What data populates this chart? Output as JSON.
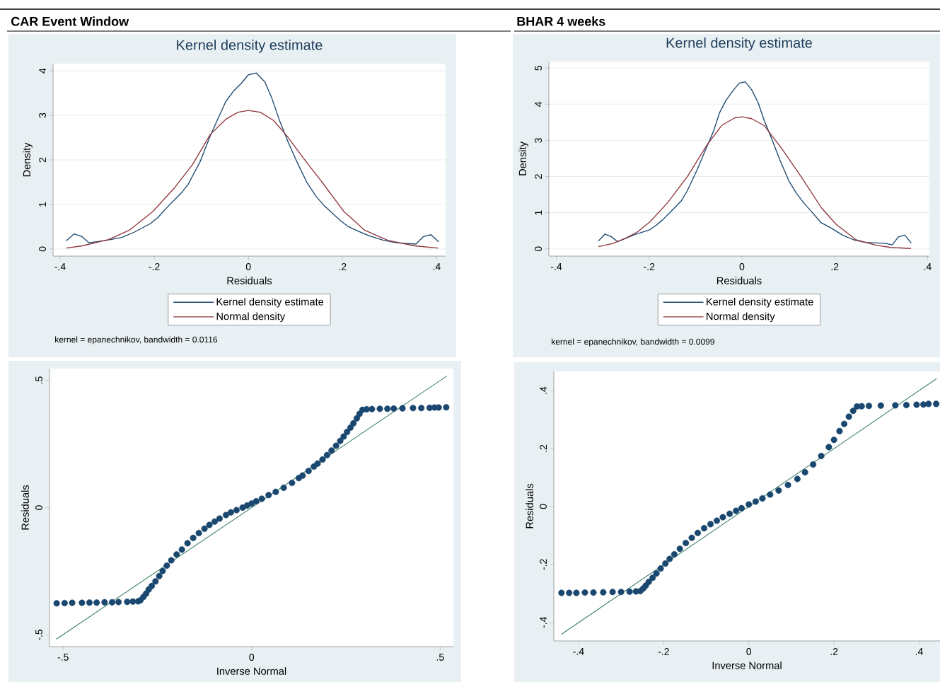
{
  "chart_data": [
    {
      "type": "line",
      "title": "Kernel density estimate",
      "xlabel": "Residuals",
      "ylabel": "Density",
      "annotations": [
        "CAR Event Window",
        "kernel = epanechnikov, bandwidth = 0.0116"
      ],
      "xlim": [
        -0.415,
        0.419
      ],
      "ylim": [
        -0.16,
        4.16
      ],
      "xticks": [
        {
          "value": -0.4,
          "label": "-.4"
        },
        {
          "value": -0.2,
          "label": "-.2"
        },
        0,
        {
          "value": 0.2,
          "label": ".2"
        },
        {
          "value": 0.4,
          "label": ".4"
        }
      ],
      "yticks": [
        0,
        1,
        2,
        3,
        4
      ],
      "grid": "y",
      "legend": "bottom",
      "series": [
        {
          "name": "Kernel density estimate",
          "color": "#1a476f",
          "x": [
            -0.387,
            -0.37,
            -0.354,
            -0.339,
            -0.303,
            -0.269,
            -0.242,
            -0.208,
            -0.192,
            -0.175,
            -0.144,
            -0.128,
            -0.103,
            -0.081,
            -0.064,
            -0.048,
            -0.032,
            -0.015,
            0,
            0.017,
            0.035,
            0.05,
            0.067,
            0.086,
            0.106,
            0.125,
            0.144,
            0.161,
            0.178,
            0.194,
            0.211,
            0.231,
            0.258,
            0.286,
            0.314,
            0.356,
            0.372,
            0.388,
            0.404
          ],
          "values": [
            0.18,
            0.34,
            0.28,
            0.14,
            0.19,
            0.26,
            0.38,
            0.57,
            0.71,
            0.91,
            1.24,
            1.45,
            1.95,
            2.54,
            2.94,
            3.31,
            3.54,
            3.72,
            3.91,
            3.95,
            3.75,
            3.38,
            2.86,
            2.36,
            1.89,
            1.48,
            1.18,
            0.97,
            0.81,
            0.65,
            0.51,
            0.41,
            0.29,
            0.2,
            0.14,
            0.11,
            0.28,
            0.32,
            0.16
          ]
        },
        {
          "name": "Normal density",
          "color": "#90353b",
          "x": [
            -0.387,
            -0.353,
            -0.297,
            -0.253,
            -0.203,
            -0.158,
            -0.119,
            -0.081,
            -0.047,
            -0.022,
            0,
            0.025,
            0.053,
            0.081,
            0.119,
            0.158,
            0.203,
            0.247,
            0.297,
            0.353,
            0.403
          ],
          "values": [
            0.02,
            0.07,
            0.21,
            0.42,
            0.84,
            1.36,
            1.89,
            2.57,
            2.92,
            3.07,
            3.11,
            3.07,
            2.89,
            2.55,
            2.01,
            1.48,
            0.84,
            0.42,
            0.19,
            0.07,
            0.02
          ]
        }
      ]
    },
    {
      "type": "line",
      "title": "Kernel density estimate",
      "xlabel": "Residuals",
      "ylabel": "Density",
      "annotations": [
        "BHAR 4 weeks",
        "kernel = epanechnikov, bandwidth = 0.0099"
      ],
      "xlim": [
        -0.416,
        0.404
      ],
      "ylim": [
        -0.2,
        5.18
      ],
      "xticks": [
        {
          "value": -0.4,
          "label": "-.4"
        },
        {
          "value": -0.2,
          "label": "-.2"
        },
        0,
        {
          "value": 0.2,
          "label": ".2"
        },
        {
          "value": 0.4,
          "label": ".4"
        }
      ],
      "yticks": [
        0,
        1,
        2,
        3,
        4,
        5
      ],
      "grid": "y",
      "legend": "bottom",
      "series": [
        {
          "name": "Kernel density estimate",
          "color": "#1a476f",
          "x": [
            -0.309,
            -0.295,
            -0.282,
            -0.268,
            -0.23,
            -0.2,
            -0.187,
            -0.171,
            -0.15,
            -0.131,
            -0.118,
            -0.096,
            -0.075,
            -0.061,
            -0.048,
            -0.034,
            -0.02,
            -0.006,
            0.007,
            0.021,
            0.035,
            0.048,
            0.064,
            0.083,
            0.102,
            0.118,
            0.134,
            0.15,
            0.171,
            0.193,
            0.217,
            0.241,
            0.267,
            0.31,
            0.324,
            0.337,
            0.351,
            0.365
          ],
          "values": [
            0.22,
            0.41,
            0.34,
            0.2,
            0.4,
            0.52,
            0.63,
            0.8,
            1.07,
            1.32,
            1.6,
            2.2,
            2.84,
            3.26,
            3.77,
            4.11,
            4.36,
            4.58,
            4.62,
            4.4,
            4.04,
            3.55,
            3.05,
            2.42,
            1.86,
            1.53,
            1.26,
            1.03,
            0.72,
            0.57,
            0.38,
            0.25,
            0.18,
            0.15,
            0.11,
            0.33,
            0.38,
            0.16
          ]
        },
        {
          "name": "Normal density",
          "color": "#90353b",
          "x": [
            -0.309,
            -0.278,
            -0.251,
            -0.225,
            -0.198,
            -0.16,
            -0.118,
            -0.075,
            -0.043,
            -0.016,
            0,
            0.021,
            0.048,
            0.086,
            0.128,
            0.171,
            0.203,
            0.246,
            0.289,
            0.321,
            0.364
          ],
          "values": [
            0.06,
            0.15,
            0.29,
            0.47,
            0.75,
            1.28,
            1.99,
            2.88,
            3.42,
            3.62,
            3.65,
            3.6,
            3.41,
            2.77,
            1.99,
            1.14,
            0.68,
            0.25,
            0.1,
            0.04,
            0.01
          ]
        }
      ]
    },
    {
      "type": "scatter",
      "xlabel": "Inverse Normal",
      "ylabel": "Residuals",
      "xlim": [
        -0.536,
        0.535
      ],
      "ylim": [
        -0.546,
        0.546
      ],
      "xticks": [
        {
          "value": -0.5,
          "label": "-.5"
        },
        0,
        {
          "value": 0.5,
          "label": ".5"
        }
      ],
      "yticks": [
        {
          "value": -0.5,
          "label": "-.5"
        },
        0,
        {
          "value": 0.5,
          "label": ".5"
        }
      ],
      "series": [
        {
          "type": "scatter",
          "color": "#1a476f",
          "x": [
            -0.517,
            -0.496,
            -0.476,
            -0.45,
            -0.43,
            -0.411,
            -0.39,
            -0.37,
            -0.353,
            -0.33,
            -0.315,
            -0.301,
            -0.295,
            -0.287,
            -0.28,
            -0.273,
            -0.265,
            -0.255,
            -0.245,
            -0.236,
            -0.225,
            -0.213,
            -0.199,
            -0.185,
            -0.17,
            -0.155,
            -0.14,
            -0.125,
            -0.112,
            -0.098,
            -0.085,
            -0.068,
            -0.055,
            -0.04,
            -0.024,
            -0.012,
            0,
            0.012,
            0.027,
            0.045,
            0.064,
            0.085,
            0.107,
            0.125,
            0.135,
            0.151,
            0.165,
            0.175,
            0.188,
            0.2,
            0.212,
            0.224,
            0.235,
            0.244,
            0.253,
            0.262,
            0.27,
            0.279,
            0.286,
            0.294,
            0.305,
            0.319,
            0.34,
            0.36,
            0.377,
            0.4,
            0.428,
            0.45,
            0.472,
            0.485,
            0.496,
            0.516
          ],
          "values": [
            -0.376,
            -0.375,
            -0.374,
            -0.374,
            -0.373,
            -0.373,
            -0.372,
            -0.372,
            -0.371,
            -0.37,
            -0.369,
            -0.368,
            -0.364,
            -0.351,
            -0.338,
            -0.322,
            -0.308,
            -0.29,
            -0.269,
            -0.249,
            -0.228,
            -0.207,
            -0.184,
            -0.165,
            -0.14,
            -0.119,
            -0.1,
            -0.083,
            -0.068,
            -0.055,
            -0.043,
            -0.029,
            -0.019,
            -0.01,
            0,
            0.008,
            0.016,
            0.025,
            0.035,
            0.049,
            0.062,
            0.078,
            0.097,
            0.116,
            0.126,
            0.144,
            0.161,
            0.173,
            0.189,
            0.206,
            0.224,
            0.243,
            0.262,
            0.279,
            0.297,
            0.314,
            0.331,
            0.351,
            0.368,
            0.384,
            0.386,
            0.387,
            0.388,
            0.388,
            0.389,
            0.39,
            0.391,
            0.391,
            0.392,
            0.393,
            0.393,
            0.394
          ]
        },
        {
          "type": "line",
          "color": "#3b8068",
          "x": [
            -0.518,
            0.518
          ],
          "values": [
            -0.517,
            0.517
          ]
        }
      ]
    },
    {
      "type": "scatter",
      "xlabel": "Inverse Normal",
      "ylabel": "Residuals",
      "xlim": [
        -0.458,
        0.449
      ],
      "ylim": [
        -0.464,
        0.466
      ],
      "xticks": [
        {
          "value": -0.4,
          "label": "-.4"
        },
        {
          "value": -0.2,
          "label": "-.2"
        },
        0,
        {
          "value": 0.2,
          "label": ".2"
        },
        {
          "value": 0.4,
          "label": ".4"
        }
      ],
      "yticks": [
        {
          "value": -0.4,
          "label": "-.4"
        },
        {
          "value": -0.2,
          "label": "-.2"
        },
        0,
        {
          "value": 0.2,
          "label": ".2"
        },
        {
          "value": 0.4,
          "label": ".4"
        }
      ],
      "series": [
        {
          "type": "scatter",
          "color": "#1a476f",
          "x": [
            -0.44,
            -0.422,
            -0.405,
            -0.385,
            -0.365,
            -0.342,
            -0.32,
            -0.3,
            -0.28,
            -0.265,
            -0.255,
            -0.248,
            -0.242,
            -0.235,
            -0.226,
            -0.217,
            -0.207,
            -0.196,
            -0.186,
            -0.175,
            -0.162,
            -0.148,
            -0.134,
            -0.12,
            -0.105,
            -0.09,
            -0.075,
            -0.061,
            -0.045,
            -0.03,
            -0.017,
            0,
            0.016,
            0.032,
            0.05,
            0.07,
            0.092,
            0.114,
            0.132,
            0.151,
            0.17,
            0.188,
            0.2,
            0.213,
            0.224,
            0.235,
            0.245,
            0.254,
            0.265,
            0.282,
            0.31,
            0.344,
            0.37,
            0.394,
            0.41,
            0.422,
            0.44
          ],
          "values": [
            -0.298,
            -0.298,
            -0.298,
            -0.297,
            -0.297,
            -0.296,
            -0.295,
            -0.295,
            -0.294,
            -0.293,
            -0.292,
            -0.283,
            -0.273,
            -0.26,
            -0.246,
            -0.231,
            -0.214,
            -0.197,
            -0.181,
            -0.165,
            -0.146,
            -0.126,
            -0.108,
            -0.091,
            -0.075,
            -0.061,
            -0.049,
            -0.037,
            -0.025,
            -0.015,
            -0.006,
            0.007,
            0.017,
            0.028,
            0.041,
            0.055,
            0.074,
            0.095,
            0.118,
            0.145,
            0.174,
            0.205,
            0.23,
            0.26,
            0.285,
            0.31,
            0.33,
            0.345,
            0.346,
            0.347,
            0.348,
            0.349,
            0.35,
            0.351,
            0.352,
            0.354,
            0.354
          ]
        },
        {
          "type": "line",
          "color": "#3b8068",
          "x": [
            -0.44,
            0.441
          ],
          "values": [
            -0.441,
            0.441
          ]
        }
      ]
    }
  ]
}
